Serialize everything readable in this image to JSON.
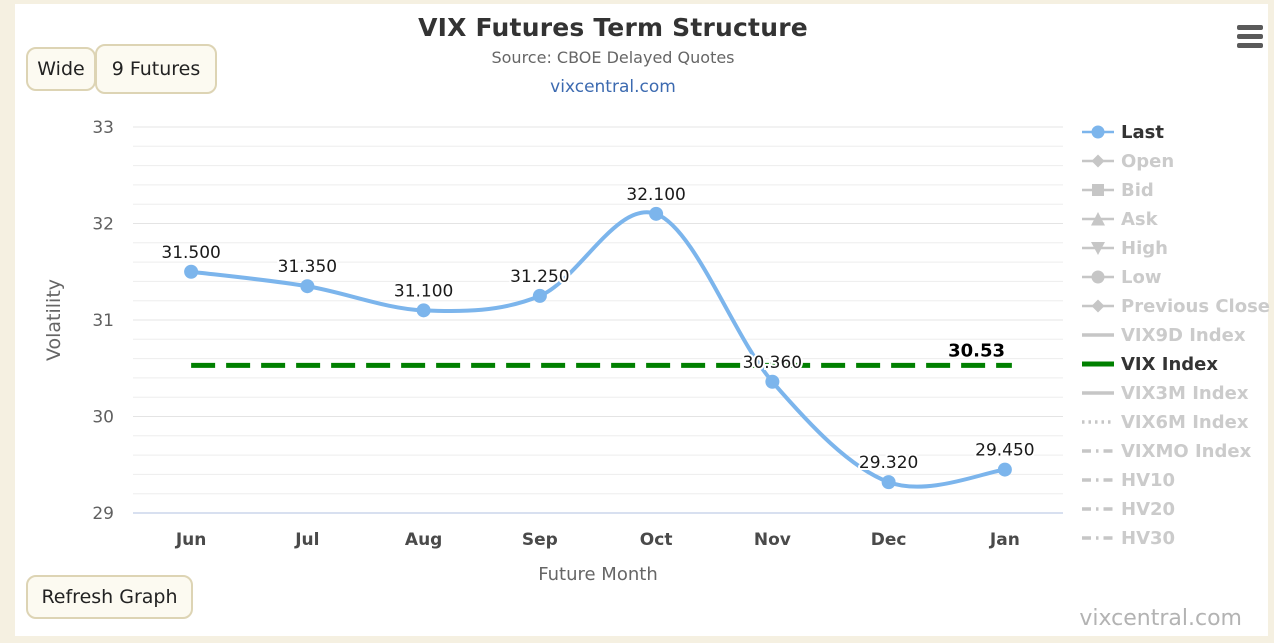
{
  "header": {
    "title": "VIX Futures Term Structure",
    "subtitle": "Source: CBOE Delayed Quotes",
    "link": "vixcentral.com"
  },
  "buttons": {
    "wide": "Wide",
    "futures": "9 Futures",
    "refresh": "Refresh Graph"
  },
  "footer": {
    "watermark": "vixcentral.com"
  },
  "icons": {
    "menu": "hamburger-menu-icon"
  },
  "colors": {
    "last_series": "#7cb5ec",
    "vix_index_line": "#008000",
    "inactive_legend": "#cbcbcb",
    "active_legend": "#333333",
    "page_background": "#f5f0e1",
    "x_axis_line": "#ccd6eb",
    "major_grid": "#e4e4e4",
    "minor_grid": "#ededed",
    "data_label": "#1a1a1a"
  },
  "chart_data": {
    "type": "line",
    "title": "VIX Futures Term Structure",
    "subtitle": "Source: CBOE Delayed Quotes",
    "xlabel": "Future Month",
    "ylabel": "Volatility",
    "categories": [
      "Jun",
      "Jul",
      "Aug",
      "Sep",
      "Oct",
      "Nov",
      "Dec",
      "Jan"
    ],
    "series": [
      {
        "name": "Last",
        "color": "#7cb5ec",
        "values": [
          31.5,
          31.35,
          31.1,
          31.25,
          32.1,
          30.36,
          29.32,
          29.45
        ],
        "labels": [
          "31.500",
          "31.350",
          "31.100",
          "31.250",
          "32.100",
          "30.360",
          "29.320",
          "29.450"
        ]
      }
    ],
    "plot_line": {
      "name": "VIX Index",
      "value": 30.53,
      "label": "30.53",
      "color": "#008000",
      "style": "dashed"
    },
    "ylim": [
      29,
      33
    ],
    "y_major_step": 1,
    "y_minor_step": 0.2,
    "y_ticks": [
      29,
      30,
      31,
      32,
      33
    ],
    "grid": true,
    "legend_position": "right"
  },
  "legend": {
    "items": [
      {
        "label": "Last",
        "marker": "circle",
        "color": "#7cb5ec",
        "active": true
      },
      {
        "label": "Open",
        "marker": "diamond",
        "color": "#c6c6c6",
        "active": false
      },
      {
        "label": "Bid",
        "marker": "square",
        "color": "#c6c6c6",
        "active": false
      },
      {
        "label": "Ask",
        "marker": "triangle",
        "color": "#c6c6c6",
        "active": false
      },
      {
        "label": "High",
        "marker": "triangle-down",
        "color": "#c6c6c6",
        "active": false
      },
      {
        "label": "Low",
        "marker": "circle",
        "color": "#c6c6c6",
        "active": false
      },
      {
        "label": "Previous Close",
        "marker": "diamond",
        "color": "#c6c6c6",
        "active": false
      },
      {
        "label": "VIX9D Index",
        "marker": "line",
        "color": "#c6c6c6",
        "active": false
      },
      {
        "label": "VIX Index",
        "marker": "line-thick",
        "color": "#008000",
        "active": true
      },
      {
        "label": "VIX3M Index",
        "marker": "line",
        "color": "#c6c6c6",
        "active": false
      },
      {
        "label": "VIX6M Index",
        "marker": "dotted",
        "color": "#c6c6c6",
        "active": false
      },
      {
        "label": "VIXMO Index",
        "marker": "dashdot",
        "color": "#c6c6c6",
        "active": false
      },
      {
        "label": "HV10",
        "marker": "dashdot",
        "color": "#c6c6c6",
        "active": false
      },
      {
        "label": "HV20",
        "marker": "dashdot",
        "color": "#c6c6c6",
        "active": false
      },
      {
        "label": "HV30",
        "marker": "dashdot",
        "color": "#c6c6c6",
        "active": false
      }
    ]
  }
}
